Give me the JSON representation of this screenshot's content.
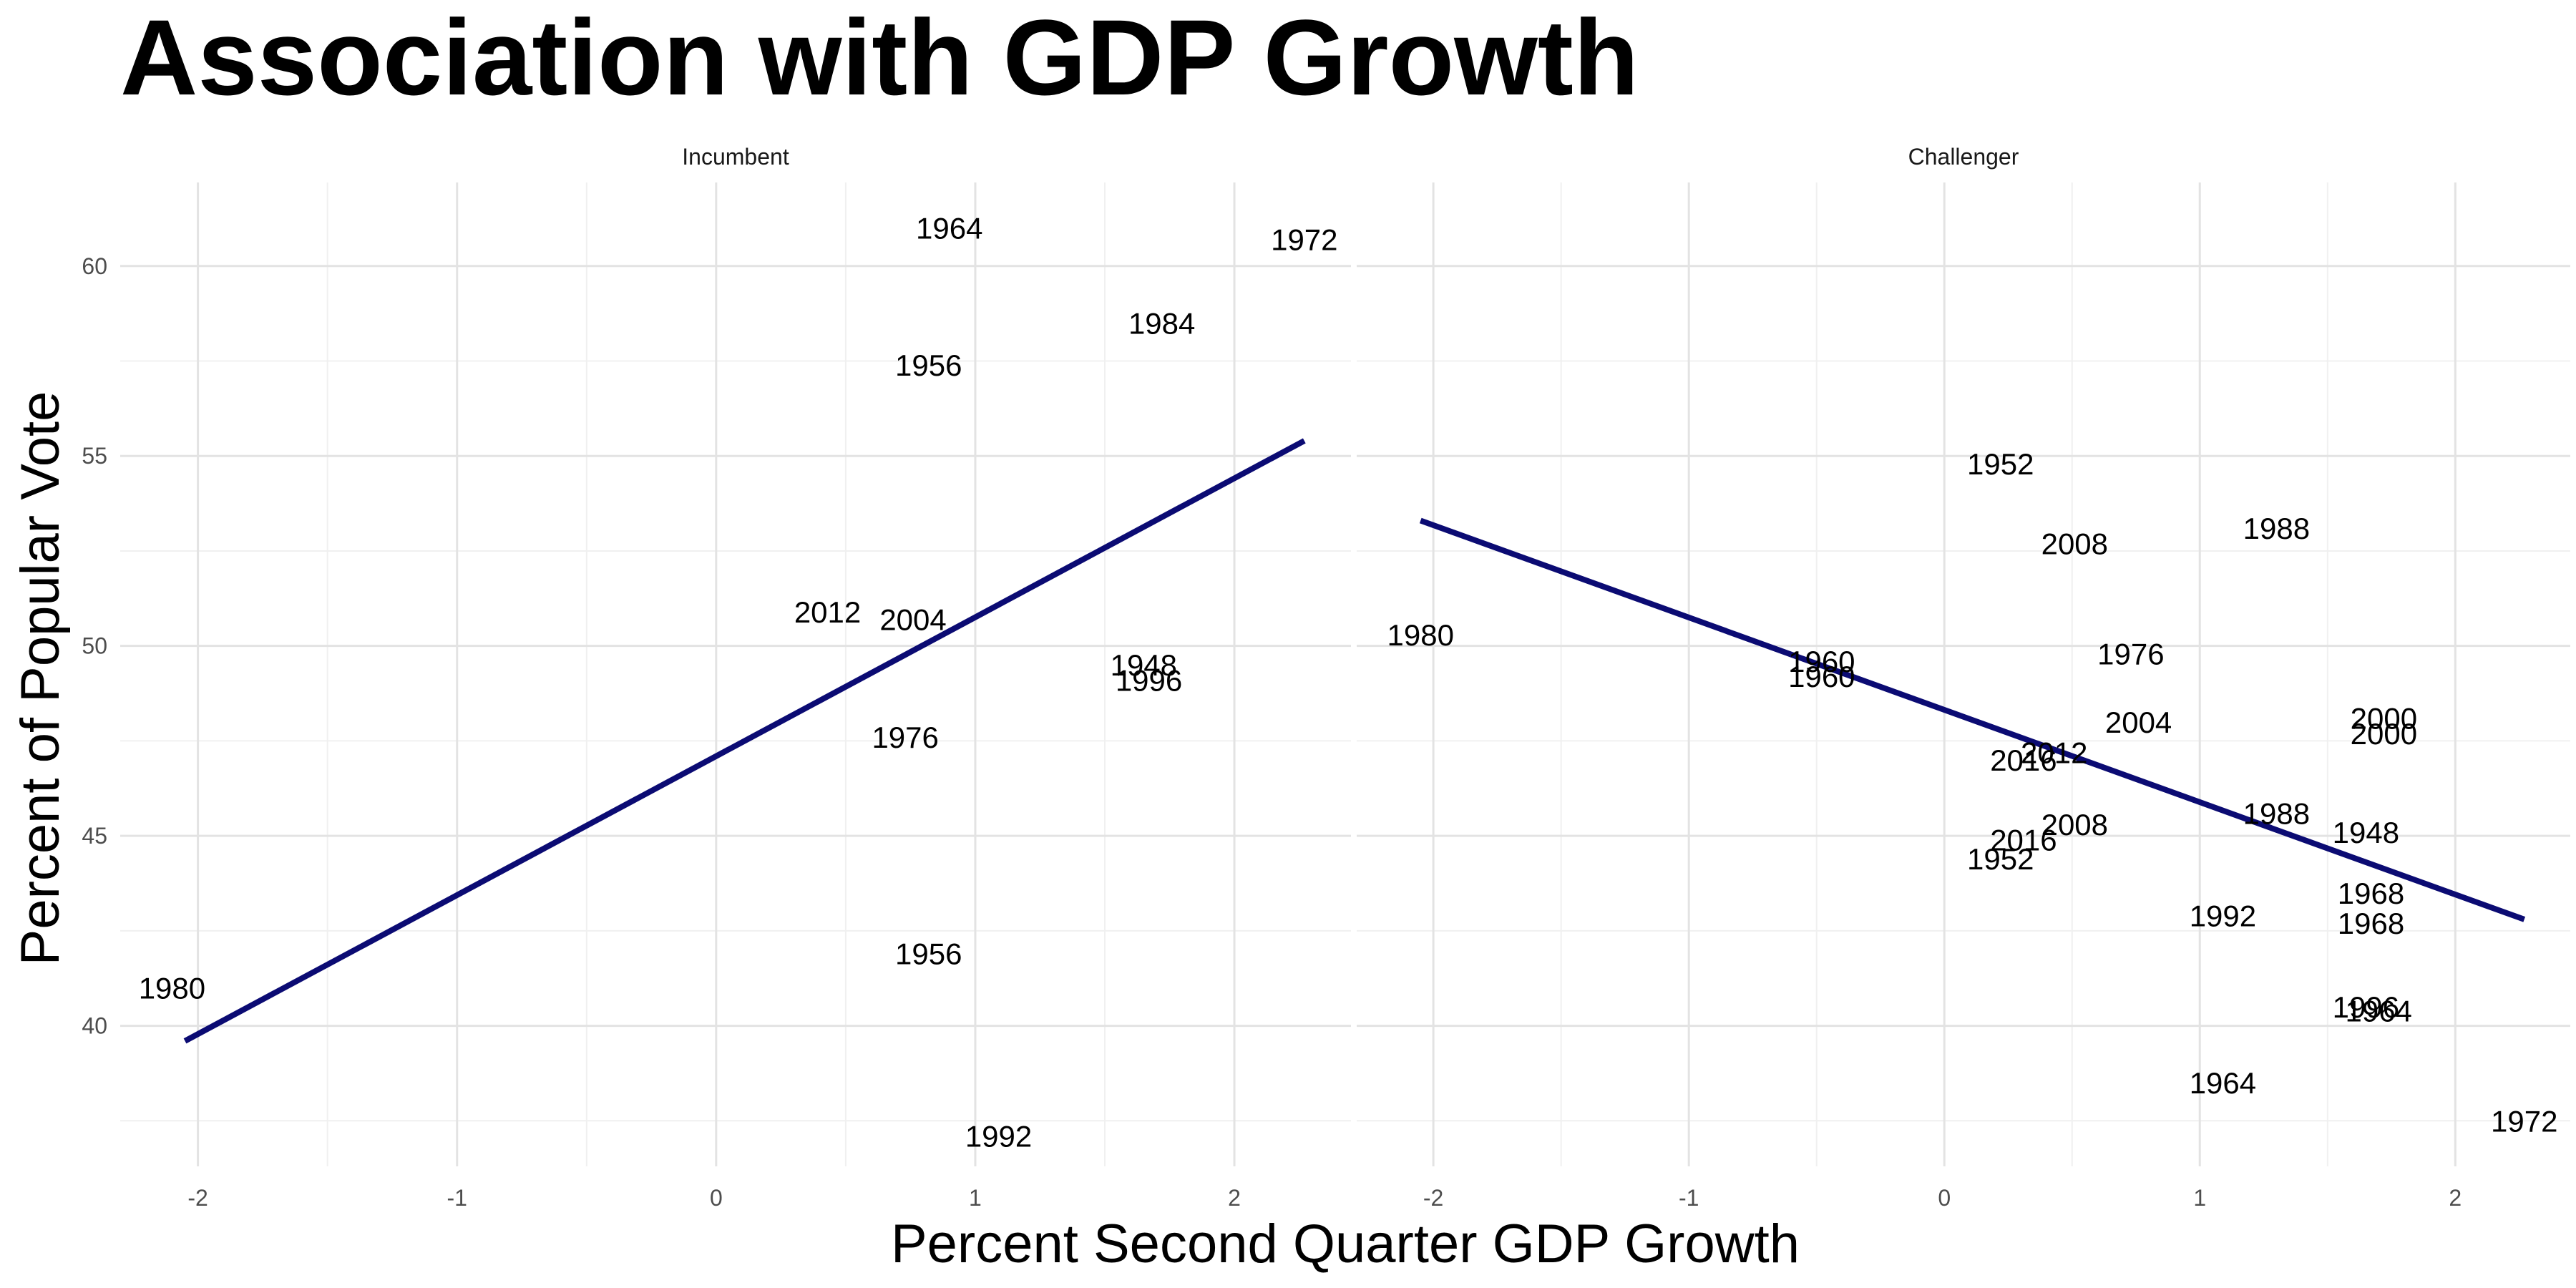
{
  "chart_data": {
    "type": "scatter",
    "title": "Association with GDP Growth",
    "xlabel": "Percent Second Quarter GDP Growth",
    "ylabel": "Percent of Popular Vote",
    "xlim": [
      -2.3,
      2.45
    ],
    "ylim": [
      36.3,
      62.2
    ],
    "xticks": [
      -2,
      -1,
      0,
      1,
      2
    ],
    "yticks": [
      40,
      45,
      50,
      55,
      60
    ],
    "grid": true,
    "line_color": "#0b0b73",
    "panels": [
      {
        "name": "Incumbent",
        "points": [
          {
            "label": "1964",
            "x": 0.9,
            "y": 61.0
          },
          {
            "label": "1972",
            "x": 2.27,
            "y": 60.7
          },
          {
            "label": "1984",
            "x": 1.72,
            "y": 58.5
          },
          {
            "label": "1956",
            "x": 0.82,
            "y": 57.4
          },
          {
            "label": "2012",
            "x": 0.43,
            "y": 50.9
          },
          {
            "label": "2004",
            "x": 0.76,
            "y": 50.7
          },
          {
            "label": "1948",
            "x": 1.65,
            "y": 49.5
          },
          {
            "label": "1996",
            "x": 1.67,
            "y": 49.1
          },
          {
            "label": "1976",
            "x": 0.73,
            "y": 47.6
          },
          {
            "label": "1980",
            "x": -2.1,
            "y": 41.0
          },
          {
            "label": "1956",
            "x": 0.82,
            "y": 41.9
          },
          {
            "label": "1992",
            "x": 1.09,
            "y": 37.1
          }
        ],
        "fit": {
          "x": [
            -2.05,
            2.27
          ],
          "y": [
            39.6,
            55.4
          ]
        }
      },
      {
        "name": "Challenger",
        "points": [
          {
            "label": "1952",
            "x": 0.22,
            "y": 54.8
          },
          {
            "label": "1988",
            "x": 1.3,
            "y": 53.1
          },
          {
            "label": "2008",
            "x": 0.51,
            "y": 52.7
          },
          {
            "label": "1980",
            "x": -2.05,
            "y": 50.3
          },
          {
            "label": "1960",
            "x": -0.48,
            "y": 49.6
          },
          {
            "label": "1960",
            "x": -0.48,
            "y": 49.2
          },
          {
            "label": "1976",
            "x": 0.73,
            "y": 49.8
          },
          {
            "label": "2000",
            "x": 1.72,
            "y": 48.1
          },
          {
            "label": "2000",
            "x": 1.72,
            "y": 47.7
          },
          {
            "label": "2004",
            "x": 0.76,
            "y": 48.0
          },
          {
            "label": "2012",
            "x": 0.43,
            "y": 47.2
          },
          {
            "label": "2016",
            "x": 0.31,
            "y": 47.0
          },
          {
            "label": "1988",
            "x": 1.3,
            "y": 45.6
          },
          {
            "label": "2008",
            "x": 0.51,
            "y": 45.3
          },
          {
            "label": "1948",
            "x": 1.65,
            "y": 45.1
          },
          {
            "label": "2016",
            "x": 0.31,
            "y": 44.9
          },
          {
            "label": "1952",
            "x": 0.22,
            "y": 44.4
          },
          {
            "label": "1968",
            "x": 1.67,
            "y": 43.5
          },
          {
            "label": "1992",
            "x": 1.09,
            "y": 42.9
          },
          {
            "label": "1968",
            "x": 1.67,
            "y": 42.7
          },
          {
            "label": "1996",
            "x": 1.65,
            "y": 40.5
          },
          {
            "label": "1964",
            "x": 1.7,
            "y": 40.4
          },
          {
            "label": "1964",
            "x": 1.09,
            "y": 38.5
          },
          {
            "label": "1972",
            "x": 2.27,
            "y": 37.5
          }
        ],
        "fit": {
          "x": [
            -2.05,
            2.27
          ],
          "y": [
            53.3,
            42.8
          ]
        }
      }
    ]
  }
}
